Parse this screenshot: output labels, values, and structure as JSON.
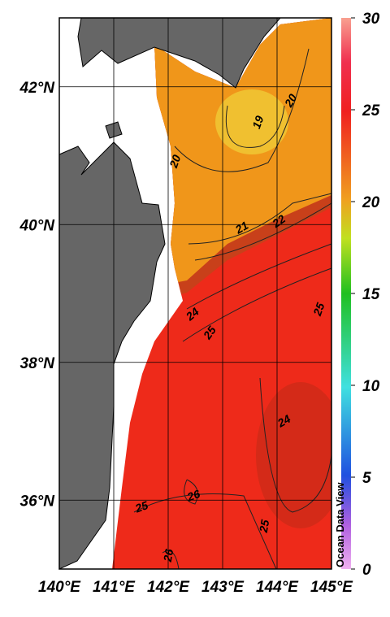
{
  "map": {
    "xlim": [
      140,
      145
    ],
    "ylim": [
      35,
      43
    ],
    "xticks": [
      {
        "value": 140,
        "label": "140°E"
      },
      {
        "value": 141,
        "label": "141°E"
      },
      {
        "value": 142,
        "label": "142°E"
      },
      {
        "value": 143,
        "label": "143°E"
      },
      {
        "value": 144,
        "label": "144°E"
      },
      {
        "value": 145,
        "label": "145°E"
      }
    ],
    "yticks": [
      {
        "value": 36,
        "label": "36°N"
      },
      {
        "value": 38,
        "label": "38°N"
      },
      {
        "value": 40,
        "label": "40°N"
      },
      {
        "value": 42,
        "label": "42°N"
      }
    ],
    "colorbar": {
      "lim": [
        0,
        30
      ],
      "ticks": [
        0,
        5,
        10,
        15,
        20,
        25,
        30
      ]
    },
    "contour_labels": [
      19,
      20,
      20,
      21,
      22,
      24,
      25,
      25,
      24,
      25,
      26,
      25,
      26
    ],
    "watermark": "Ocean Data View"
  }
}
